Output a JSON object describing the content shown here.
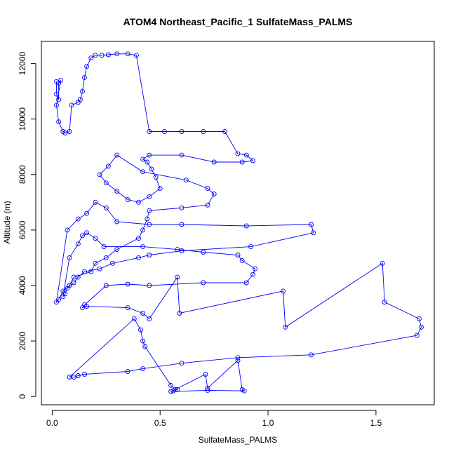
{
  "chart_data": {
    "type": "scatter",
    "title": "ATOM4 Northeast_Pacific_1 SulfateMass_PALMS",
    "xlabel": "SulfateMass_PALMS",
    "ylabel": "Altitude (m)",
    "xlim": [
      -0.05,
      1.77
    ],
    "ylim": [
      -300,
      12800
    ],
    "xticks": [
      0.0,
      0.5,
      1.0,
      1.5
    ],
    "xtick_labels": [
      "0.0",
      "0.5",
      "1.0",
      "1.5"
    ],
    "yticks": [
      0,
      2000,
      4000,
      6000,
      8000,
      10000,
      12000
    ],
    "ytick_labels": [
      "0",
      "2000",
      "4000",
      "6000",
      "8000",
      "10000",
      "12000"
    ],
    "grid": false,
    "legend": "none",
    "colors": {
      "series": "#0000ff",
      "axis": "#000000"
    },
    "series": [
      {
        "style": "points+lines",
        "x": [
          0.02,
          0.02,
          0.03,
          0.03,
          0.04,
          0.02,
          0.03,
          0.05,
          0.06,
          0.08,
          0.09,
          0.12,
          0.13,
          0.14,
          0.15,
          0.16,
          0.18,
          0.2,
          0.23,
          0.26,
          0.3,
          0.35,
          0.39,
          0.45,
          0.52,
          0.6,
          0.7,
          0.8,
          0.86,
          0.9,
          0.93,
          0.88,
          0.75,
          0.6,
          0.45,
          0.42,
          0.44,
          0.46,
          0.48,
          0.5,
          0.45,
          0.4,
          0.35,
          0.3,
          0.25,
          0.22,
          0.26,
          0.3,
          0.42,
          0.62,
          0.72,
          0.75,
          0.72,
          0.6,
          0.45,
          0.44,
          0.42,
          0.4,
          0.3,
          0.25,
          0.2,
          0.18,
          0.1,
          0.08,
          0.05,
          0.03,
          0.02,
          0.07,
          0.12,
          0.16,
          0.2,
          0.25,
          0.3,
          0.45,
          0.6,
          0.9,
          1.2,
          1.21,
          0.92,
          0.6,
          0.45,
          0.4,
          0.28,
          0.22,
          0.15,
          0.12,
          0.1,
          0.07,
          0.06,
          0.05,
          0.08,
          0.12,
          0.14,
          0.16,
          0.2,
          0.24,
          0.42,
          0.58,
          0.7,
          0.86,
          0.88,
          0.94,
          0.93,
          0.9,
          0.7,
          0.45,
          0.35,
          0.25,
          0.15,
          0.14,
          0.16,
          0.35,
          0.42,
          0.45,
          0.58,
          0.59,
          1.07,
          1.08,
          1.53,
          1.54,
          1.7,
          1.71,
          1.69,
          1.2,
          0.86,
          0.6,
          0.42,
          0.35,
          0.15,
          0.12,
          0.1,
          0.08,
          0.38,
          0.41,
          0.42,
          0.43,
          0.55,
          0.57,
          0.71,
          0.72,
          0.86,
          0.88,
          0.89,
          0.72,
          0.55,
          0.56,
          0.58
        ],
        "y": [
          11350,
          10900,
          10700,
          11300,
          11400,
          10500,
          9900,
          9550,
          9500,
          9550,
          10500,
          10600,
          10700,
          11000,
          11500,
          11900,
          12200,
          12300,
          12300,
          12320,
          12350,
          12350,
          12300,
          9550,
          9550,
          9550,
          9550,
          9550,
          8750,
          8700,
          8500,
          8450,
          8450,
          8700,
          8700,
          8550,
          8450,
          8200,
          7900,
          7500,
          7200,
          7000,
          7100,
          7400,
          7700,
          8000,
          8300,
          8700,
          8100,
          7800,
          7500,
          7300,
          6900,
          6800,
          6700,
          6400,
          6000,
          5700,
          5300,
          5000,
          4800,
          4500,
          4300,
          4000,
          3800,
          3500,
          3400,
          6000,
          6400,
          6600,
          7000,
          6800,
          6300,
          6200,
          6200,
          6150,
          6200,
          5900,
          5400,
          5250,
          5100,
          5000,
          4800,
          4600,
          4500,
          4300,
          4100,
          3900,
          3700,
          3600,
          5000,
          5500,
          5800,
          5900,
          5700,
          5400,
          5400,
          5300,
          5200,
          5100,
          4900,
          4600,
          4400,
          4100,
          4100,
          4000,
          4050,
          4000,
          3300,
          3200,
          3250,
          3200,
          3000,
          2800,
          4300,
          3000,
          3800,
          2500,
          4800,
          3400,
          2800,
          2500,
          2200,
          1500,
          1400,
          1200,
          1000,
          900,
          800,
          750,
          700,
          700,
          2800,
          2400,
          2000,
          1800,
          400,
          250,
          800,
          300,
          1300,
          250,
          200,
          220,
          180,
          200,
          250
        ]
      }
    ]
  }
}
